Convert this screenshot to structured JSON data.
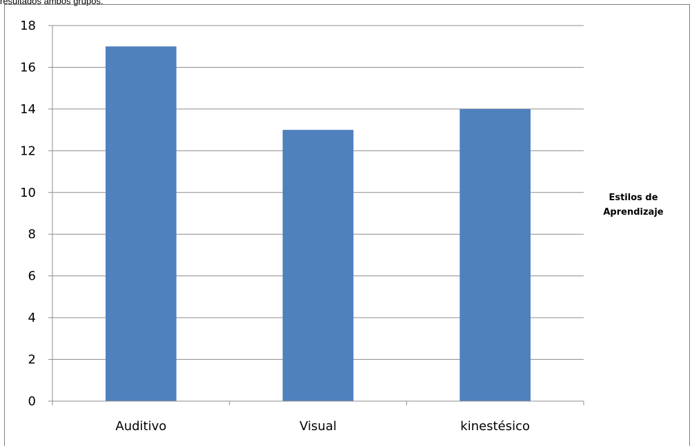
{
  "page": {
    "top_caption": "resultados ambos grupos."
  },
  "chart_data": {
    "type": "bar",
    "categories": [
      "Auditivo",
      "Visual",
      "kinestésico"
    ],
    "series": [
      {
        "name": "Estilos de Aprendizaje",
        "values": [
          17,
          13,
          14
        ],
        "color": "#4F81BD"
      }
    ],
    "yticks": [
      "0",
      "2",
      "4",
      "6",
      "8",
      "10",
      "12",
      "14",
      "16",
      "18"
    ],
    "ylim": [
      0,
      18
    ],
    "grid": true,
    "legend": {
      "position": "right",
      "lines": [
        "Estilos de",
        "Aprendizaje"
      ]
    }
  }
}
